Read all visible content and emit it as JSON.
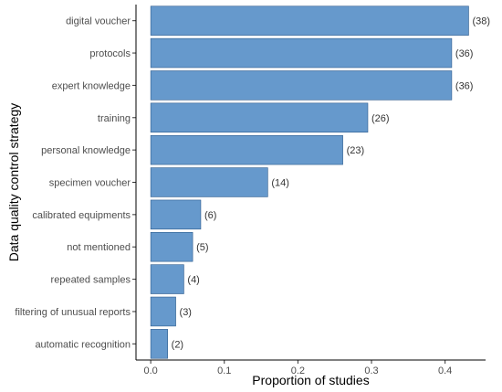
{
  "chart_data": {
    "type": "bar",
    "orientation": "horizontal",
    "categories": [
      "digital voucher",
      "protocols",
      "expert knowledge",
      "training",
      "personal knowledge",
      "specimen voucher",
      "calibrated equipments",
      "not mentioned",
      "repeated samples",
      "filtering of unusual reports",
      "automatic recognition"
    ],
    "values": [
      0.432,
      0.409,
      0.409,
      0.295,
      0.261,
      0.159,
      0.068,
      0.057,
      0.045,
      0.034,
      0.023
    ],
    "data_labels": [
      "(38)",
      "(36)",
      "(36)",
      "(26)",
      "(23)",
      "(14)",
      "(6)",
      "(5)",
      "(4)",
      "(3)",
      "(2)"
    ],
    "xlabel": "Proportion of studies",
    "ylabel": "Data quality control strategy",
    "xlim": [
      -0.02,
      0.455
    ],
    "xticks": [
      0.0,
      0.1,
      0.2,
      0.3,
      0.4
    ],
    "xtick_labels": [
      "0.0",
      "0.1",
      "0.2",
      "0.3",
      "0.4"
    ],
    "grid": false,
    "bar_color": "#6699cc"
  }
}
